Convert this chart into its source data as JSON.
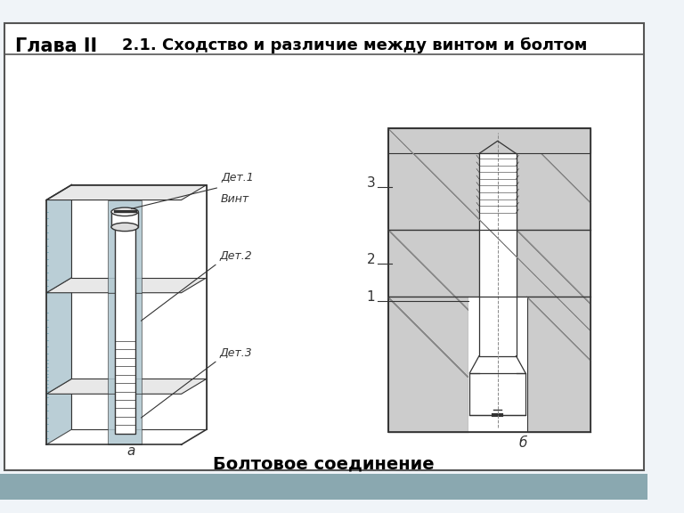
{
  "title_left": "Глава II",
  "title_right": "2.1. Сходство и различие между винтом и болтом",
  "caption": "Болтовое соединение",
  "label_a": "а",
  "label_b": "б",
  "label_det1": "Дет.1",
  "label_vint": "Винт",
  "label_det2": "Дет.2",
  "label_det3": "Дет.3",
  "label_1": "1",
  "label_2": "2",
  "label_3": "3",
  "bg_color": "#f0f4f8",
  "header_bg": "#ffffff",
  "border_color": "#555555",
  "hatch_color": "#aec6cf",
  "line_color": "#333333",
  "footer_color": "#8aa8b0",
  "title_fontsize": 15,
  "subtitle_fontsize": 13,
  "caption_fontsize": 14
}
